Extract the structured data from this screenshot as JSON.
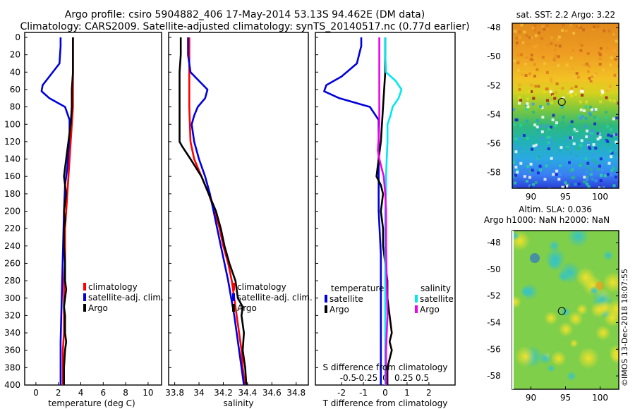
{
  "header": {
    "line1": "Argo profile: csiro 5904882_406 17-May-2014 53.13S 94.462E (DM data)",
    "line2": "Climatology: CARS2009. Satellite-adjusted climatology: synTS_20140517.nc (0.77d earlier)"
  },
  "depth_axis": {
    "ticks": [
      0,
      20,
      40,
      60,
      80,
      100,
      120,
      140,
      160,
      180,
      200,
      220,
      240,
      260,
      280,
      300,
      320,
      340,
      360,
      380,
      400
    ]
  },
  "colors": {
    "climatology": "#ff0000",
    "satellite": "#0000dd",
    "argo": "#000000",
    "sat_salinity": "#00e8ee",
    "argo_salinity": "#ee00ee"
  },
  "chart_data": [
    {
      "type": "line",
      "title": "",
      "xlabel": "temperature (deg C)",
      "ylabel": "depth",
      "xlim": [
        -1,
        11.2
      ],
      "ylim": [
        400,
        0
      ],
      "xticks": [
        "0",
        "2",
        "4",
        "6",
        "8",
        "10"
      ],
      "legend": {
        "items": [
          "climatology",
          "satellite-adj. clim.",
          "Argo"
        ],
        "placement": "lower-right"
      },
      "series": [
        {
          "name": "climatology",
          "color": "#ff0000",
          "depth": [
            0,
            20,
            40,
            60,
            80,
            100,
            120,
            140,
            160,
            180,
            200,
            220,
            240,
            260,
            280,
            300,
            320,
            340,
            360,
            380,
            400
          ],
          "values": [
            3.3,
            3.3,
            3.3,
            3.3,
            3.3,
            3.2,
            3.1,
            3.0,
            2.9,
            2.8,
            2.7,
            2.6,
            2.6,
            2.6,
            2.5,
            2.5,
            2.5,
            2.5,
            2.4,
            2.4,
            2.4
          ]
        },
        {
          "name": "satellite-adj. clim.",
          "color": "#0000dd",
          "depth": [
            0,
            10,
            30,
            45,
            55,
            62,
            70,
            80,
            95,
            110,
            130,
            150,
            170,
            200,
            250,
            300,
            350,
            400
          ],
          "values": [
            2.2,
            2.2,
            2.1,
            1.2,
            0.6,
            0.5,
            1.2,
            2.6,
            3.0,
            3.0,
            2.9,
            2.8,
            2.6,
            2.5,
            2.4,
            2.3,
            2.2,
            2.2
          ]
        },
        {
          "name": "Argo",
          "color": "#000000",
          "depth": [
            0,
            20,
            40,
            60,
            80,
            100,
            120,
            140,
            150,
            160,
            170,
            180,
            190,
            200,
            210,
            220,
            240,
            260,
            280,
            290,
            300,
            310,
            320,
            340,
            350,
            360,
            380,
            400
          ],
          "values": [
            3.3,
            3.3,
            3.3,
            3.2,
            3.2,
            3.1,
            2.9,
            2.7,
            2.6,
            2.5,
            2.6,
            2.7,
            2.6,
            2.5,
            2.6,
            2.5,
            2.5,
            2.6,
            2.6,
            2.7,
            2.6,
            2.5,
            2.6,
            2.6,
            2.7,
            2.6,
            2.5,
            2.5
          ]
        }
      ]
    },
    {
      "type": "line",
      "title": "",
      "xlabel": "salinity",
      "ylabel": "depth",
      "xlim": [
        33.75,
        34.9
      ],
      "ylim": [
        400,
        0
      ],
      "xticks": [
        "33.8",
        "34",
        "34.2",
        "34.4",
        "34.6",
        "34.8"
      ],
      "legend": {
        "items": [
          "climatology",
          "satellite-adj. clim.",
          "Argo"
        ],
        "placement": "lower-right"
      },
      "series": [
        {
          "name": "climatology",
          "color": "#ff0000",
          "depth": [
            0,
            40,
            80,
            120,
            140,
            160,
            180,
            200,
            220,
            240,
            260,
            280,
            300,
            320,
            340,
            360,
            380,
            400
          ],
          "values": [
            33.92,
            33.92,
            33.92,
            33.93,
            33.96,
            34.02,
            34.08,
            34.13,
            34.17,
            34.2,
            34.24,
            34.27,
            34.29,
            34.31,
            34.33,
            34.35,
            34.36,
            34.38
          ]
        },
        {
          "name": "satellite-adj. clim.",
          "color": "#0000dd",
          "depth": [
            0,
            20,
            40,
            50,
            60,
            70,
            80,
            90,
            100,
            120,
            140,
            160,
            180,
            200,
            240,
            280,
            320,
            360,
            400
          ],
          "values": [
            33.91,
            33.91,
            33.93,
            34.0,
            34.07,
            34.05,
            33.99,
            33.96,
            33.94,
            33.96,
            34.0,
            34.05,
            34.09,
            34.12,
            34.18,
            34.24,
            34.29,
            34.33,
            34.37
          ]
        },
        {
          "name": "Argo",
          "color": "#000000",
          "depth": [
            0,
            20,
            40,
            60,
            80,
            100,
            120,
            125,
            140,
            160,
            180,
            200,
            220,
            240,
            260,
            280,
            300,
            310,
            320,
            340,
            360,
            380,
            400
          ],
          "values": [
            33.85,
            33.85,
            33.84,
            33.84,
            33.84,
            33.84,
            33.84,
            33.86,
            33.93,
            34.02,
            34.08,
            34.14,
            34.18,
            34.21,
            34.25,
            34.3,
            34.32,
            34.36,
            34.35,
            34.37,
            34.36,
            34.38,
            34.39
          ]
        }
      ]
    },
    {
      "type": "line",
      "title": "",
      "xlabel": "T difference from climatology",
      "x2label": "S difference from climatology",
      "ylabel": "depth",
      "xlim": [
        -3.2,
        3.2
      ],
      "ylim": [
        400,
        0
      ],
      "xticks": [
        "-2",
        "-1",
        "0",
        "1",
        "2"
      ],
      "x2ticks": [
        "-0.5",
        "-0.25",
        "0",
        "0.25",
        "0.5"
      ],
      "legend": {
        "temperature_title": "temperature",
        "salinity_title": "salinity",
        "items": [
          "satellite",
          "Argo",
          "satellite",
          "Argo"
        ],
        "placement": "lower"
      },
      "series": [
        {
          "name": "temperature satellite",
          "color": "#0000dd",
          "depth": [
            0,
            10,
            30,
            45,
            55,
            62,
            70,
            80,
            95,
            110,
            130,
            150,
            170,
            200,
            250,
            300,
            350,
            400
          ],
          "values": [
            -1.1,
            -1.1,
            -1.3,
            -2.0,
            -2.7,
            -2.8,
            -2.1,
            -0.7,
            -0.3,
            -0.3,
            -0.3,
            -0.3,
            -0.3,
            -0.3,
            -0.2,
            -0.2,
            -0.2,
            -0.2
          ]
        },
        {
          "name": "temperature Argo",
          "color": "#000000",
          "depth": [
            0,
            40,
            80,
            120,
            140,
            160,
            170,
            180,
            200,
            220,
            240,
            260,
            280,
            300,
            320,
            340,
            350,
            360,
            380,
            400
          ],
          "values": [
            0.0,
            0.0,
            -0.1,
            -0.2,
            -0.3,
            -0.4,
            -0.2,
            -0.1,
            -0.2,
            -0.1,
            -0.1,
            0.0,
            0.1,
            0.1,
            0.2,
            0.3,
            0.2,
            0.3,
            0.1,
            0.1
          ]
        },
        {
          "name": "salinity satellite",
          "color": "#00e8ee",
          "depth": [
            0,
            20,
            40,
            50,
            60,
            70,
            80,
            90,
            100,
            120,
            140,
            160,
            180,
            200,
            260,
            300,
            360,
            400
          ],
          "values": [
            0.0,
            0.0,
            0.01,
            0.14,
            0.22,
            0.18,
            0.1,
            0.07,
            0.03,
            0.03,
            0.02,
            0.01,
            0.01,
            0.0,
            0.0,
            0.0,
            0.0,
            0.0
          ]
        },
        {
          "name": "salinity Argo",
          "color": "#ee00ee",
          "depth": [
            0,
            20,
            40,
            60,
            80,
            100,
            120,
            130,
            140,
            160,
            180,
            200,
            240,
            280,
            320,
            360,
            400
          ],
          "values": [
            -0.08,
            -0.08,
            -0.08,
            -0.08,
            -0.08,
            -0.08,
            -0.09,
            -0.1,
            -0.08,
            -0.02,
            0.0,
            0.01,
            0.01,
            0.02,
            0.03,
            0.01,
            0.01
          ]
        }
      ]
    }
  ],
  "maps": {
    "sst": {
      "title": "sat. SST: 2.2 Argo: 3.22",
      "lat_ticks": [
        "-48",
        "-50",
        "-52",
        "-54",
        "-56",
        "-58"
      ],
      "lon_ticks": [
        "90",
        "95",
        "100"
      ],
      "marker": {
        "lat": -53.13,
        "lon": 94.462
      }
    },
    "sla": {
      "title1": "Altim. SLA: 0.036",
      "title2": "Argo h1000: NaN h2000: NaN",
      "lat_ticks": [
        "-48",
        "-50",
        "-52",
        "-54",
        "-56",
        "-58"
      ],
      "lon_ticks": [
        "90",
        "95",
        "100"
      ],
      "marker": {
        "lat": -53.13,
        "lon": 94.462
      }
    }
  },
  "credit": "©IMOS 13-Dec-2018 18:07:55"
}
